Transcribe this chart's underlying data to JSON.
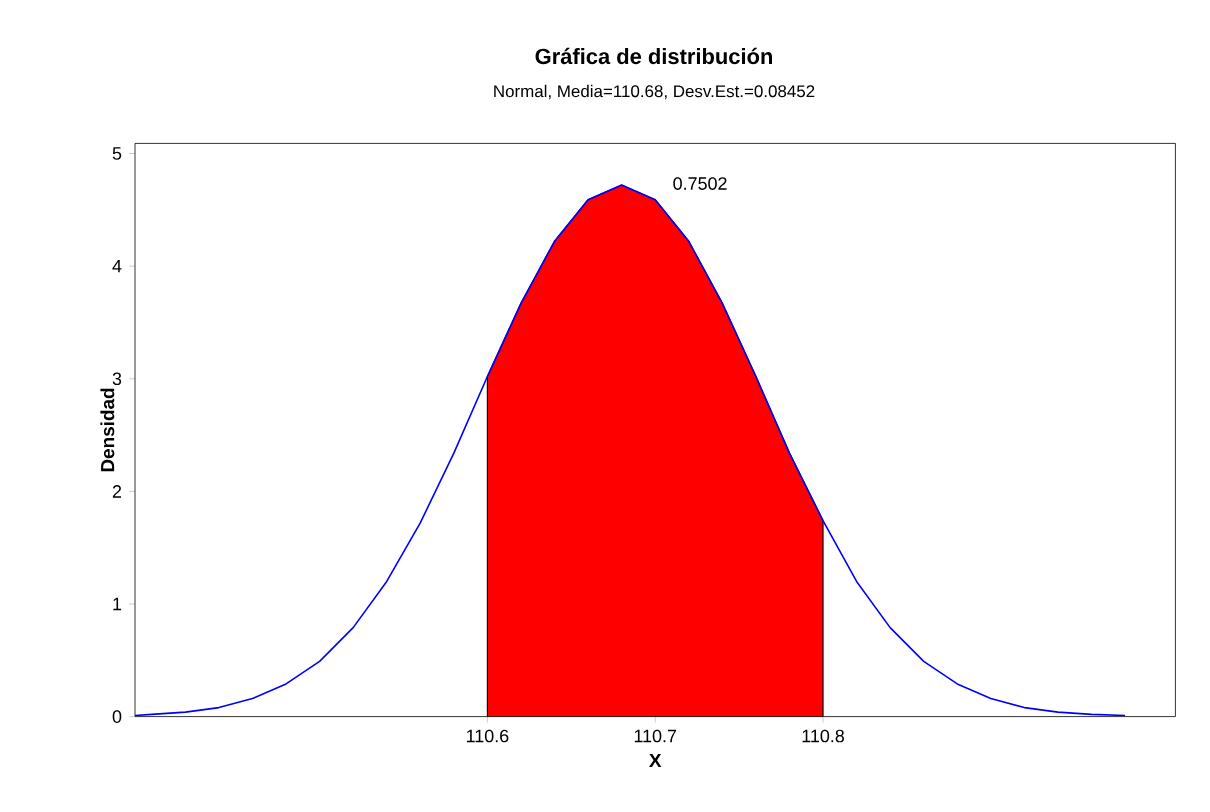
{
  "chart_data": {
    "type": "line",
    "title": "Gráfica de distribución",
    "subtitle": "Normal, Media=110.68, Desv.Est.=0.08452",
    "xlabel": "X",
    "ylabel": "Densidad",
    "xlim": [
      110.39,
      111.01
    ],
    "ylim": [
      0,
      5.09
    ],
    "xticks": [
      110.6,
      110.7,
      110.8
    ],
    "yticks": [
      0,
      1,
      2,
      3,
      4,
      5
    ],
    "marker": "none",
    "line_style": "solid",
    "annotations": [
      "0.7502"
    ],
    "series": [
      {
        "type": "area",
        "color": "#ff0000",
        "x": [
          110.6,
          110.62,
          110.64,
          110.66,
          110.68,
          110.7,
          110.72,
          110.74,
          110.76,
          110.78,
          110.8
        ],
        "values": [
          3.02,
          3.67,
          4.22,
          4.59,
          4.72,
          4.59,
          4.22,
          3.67,
          3.02,
          2.34,
          1.74
        ]
      },
      {
        "color": "#0000ff",
        "x": [
          110.39,
          110.4,
          110.42,
          110.44,
          110.46,
          110.48,
          110.5,
          110.52,
          110.54,
          110.56,
          110.58,
          110.6,
          110.62,
          110.64,
          110.66,
          110.68,
          110.7,
          110.72,
          110.74,
          110.76,
          110.78,
          110.8,
          110.82,
          110.84,
          110.86,
          110.88,
          110.9,
          110.92,
          110.94,
          110.96,
          110.98
        ],
        "values": [
          0.01,
          0.02,
          0.04,
          0.08,
          0.16,
          0.29,
          0.49,
          0.79,
          1.2,
          1.72,
          2.34,
          3.02,
          3.67,
          4.22,
          4.59,
          4.72,
          4.59,
          4.22,
          3.67,
          3.02,
          2.34,
          1.74,
          1.2,
          0.79,
          0.49,
          0.29,
          0.16,
          0.08,
          0.04,
          0.02,
          0.01
        ]
      }
    ]
  }
}
